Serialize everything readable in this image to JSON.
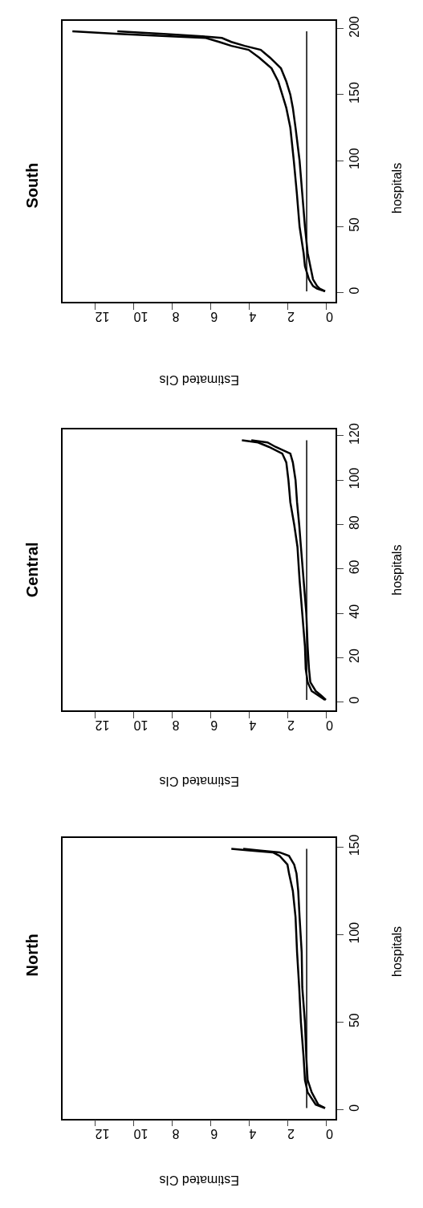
{
  "chart_data": [
    {
      "type": "line",
      "title": "North",
      "xlabel": "Estimated CIs",
      "ylabel": "hospitals",
      "xlim": [
        13.7,
        -0.5
      ],
      "xticks": [
        0,
        2,
        4,
        6,
        8,
        10,
        12
      ],
      "ylim": [
        -5,
        155
      ],
      "yticks": [
        0,
        50,
        100,
        150
      ],
      "grid": false,
      "ref_lines": [
        {
          "axis": "x",
          "value": 1,
          "color": "#000000"
        }
      ],
      "series": [
        {
          "color": "#000000",
          "x": [
            0.04,
            0.4,
            0.74,
            0.95,
            1.02,
            1.09,
            1.23,
            1.26,
            1.37,
            1.44,
            1.53,
            1.65,
            1.92,
            2.41,
            3.39,
            4.3
          ],
          "values": [
            1,
            3,
            10,
            17,
            30,
            50,
            70,
            90,
            110,
            125,
            135,
            140,
            145,
            147,
            148,
            149
          ]
        },
        {
          "color": "#000000",
          "x": [
            0.05,
            0.53,
            0.95,
            1.09,
            1.16,
            1.3,
            1.39,
            1.5,
            1.58,
            1.72,
            1.92,
            2.0,
            2.41,
            2.76,
            3.88,
            4.92
          ],
          "values": [
            1,
            3,
            10,
            17,
            30,
            50,
            70,
            90,
            110,
            125,
            135,
            140,
            145,
            147,
            148,
            149
          ]
        }
      ]
    },
    {
      "type": "line",
      "title": "Central",
      "xlabel": "Estimated CIs",
      "ylabel": "hospitals",
      "xlim": [
        13.7,
        -0.5
      ],
      "xticks": [
        0,
        2,
        4,
        6,
        8,
        10,
        12
      ],
      "ylim": [
        -3.8,
        122.8
      ],
      "yticks": [
        0,
        20,
        40,
        60,
        80,
        100,
        120
      ],
      "grid": false,
      "ref_lines": [
        {
          "axis": "x",
          "value": 1,
          "color": "#000000"
        }
      ],
      "series": [
        {
          "color": "#000000",
          "x": [
            0.0,
            0.25,
            0.53,
            0.81,
            0.88,
            0.95,
            1.02,
            1.16,
            1.3,
            1.39,
            1.5,
            1.58,
            1.72,
            1.85,
            2.62,
            3.04,
            3.88
          ],
          "values": [
            1,
            3,
            5,
            9,
            15,
            25,
            40,
            55,
            70,
            80,
            90,
            100,
            108,
            112,
            115,
            117,
            118
          ]
        },
        {
          "color": "#000000",
          "x": [
            0.05,
            0.39,
            0.74,
            0.95,
            1.05,
            1.09,
            1.23,
            1.37,
            1.48,
            1.65,
            1.85,
            1.95,
            2.06,
            2.27,
            2.97,
            3.53,
            4.37
          ],
          "values": [
            1,
            3,
            5,
            9,
            15,
            25,
            40,
            55,
            70,
            80,
            90,
            100,
            108,
            112,
            115,
            117,
            118
          ]
        }
      ]
    },
    {
      "type": "line",
      "title": "South",
      "xlabel": "Estimated CIs",
      "ylabel": "hospitals",
      "xlim": [
        13.7,
        -0.5
      ],
      "xticks": [
        0,
        2,
        4,
        6,
        8,
        10,
        12
      ],
      "ylim": [
        -7,
        206
      ],
      "yticks": [
        0,
        50,
        100,
        150,
        200
      ],
      "grid": false,
      "ref_lines": [
        {
          "axis": "x",
          "value": 1,
          "color": "#000000"
        }
      ],
      "series": [
        {
          "color": "#000000",
          "x": [
            0.04,
            0.32,
            0.46,
            0.67,
            0.81,
            0.95,
            1.09,
            1.23,
            1.37,
            1.58,
            1.72,
            1.85,
            2.06,
            2.34,
            2.9,
            3.39,
            4.23,
            4.92,
            5.41,
            6.18,
            8.45,
            10.85
          ],
          "values": [
            1,
            3,
            5,
            10,
            20,
            30,
            50,
            75,
            100,
            125,
            140,
            150,
            160,
            170,
            178,
            184,
            187,
            190,
            193,
            194,
            196,
            198
          ]
        },
        {
          "color": "#000000",
          "x": [
            0.05,
            0.46,
            0.67,
            0.88,
            1.09,
            1.16,
            1.37,
            1.51,
            1.67,
            1.85,
            2.06,
            2.27,
            2.48,
            2.83,
            3.46,
            4.02,
            4.92,
            5.55,
            6.25,
            7.64,
            10.78,
            13.19
          ],
          "values": [
            1,
            3,
            5,
            10,
            20,
            30,
            50,
            75,
            100,
            125,
            140,
            150,
            160,
            170,
            178,
            184,
            187,
            190,
            193,
            194,
            196,
            198
          ]
        }
      ]
    }
  ]
}
